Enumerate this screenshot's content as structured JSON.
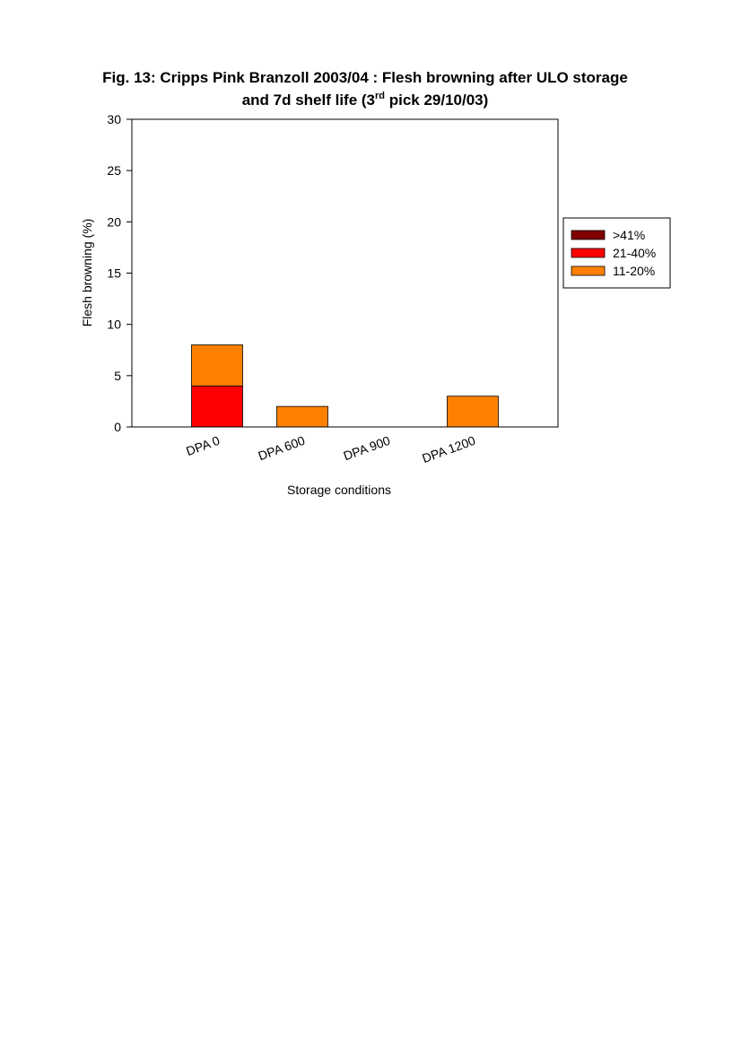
{
  "chart_data": {
    "type": "stacked-bar",
    "title": [
      "Fig. 13: Cripps Pink Branzoll 2003/04 : Flesh browning after ULO storage",
      "and 7d shelf life (3",
      "rd",
      " pick 29/10/03)"
    ],
    "x_label": "Storage conditions",
    "y_label": "Flesh browning (%)",
    "categories": [
      "DPA 0",
      "DPA 600",
      "DPA 900",
      "DPA 1200"
    ],
    "series": [
      {
        "name": ">41%",
        "color": "#800000",
        "values": [
          0,
          0,
          0,
          0
        ]
      },
      {
        "name": "21-40%",
        "color": "#ff0000",
        "values": [
          4,
          0,
          0,
          0
        ]
      },
      {
        "name": "11-20%",
        "color": "#ff8000",
        "values": [
          4,
          2,
          0,
          3
        ]
      }
    ],
    "ylim": [
      0,
      30
    ],
    "yticks": [
      0,
      5,
      10,
      15,
      20,
      25,
      30
    ],
    "legend": "right"
  }
}
